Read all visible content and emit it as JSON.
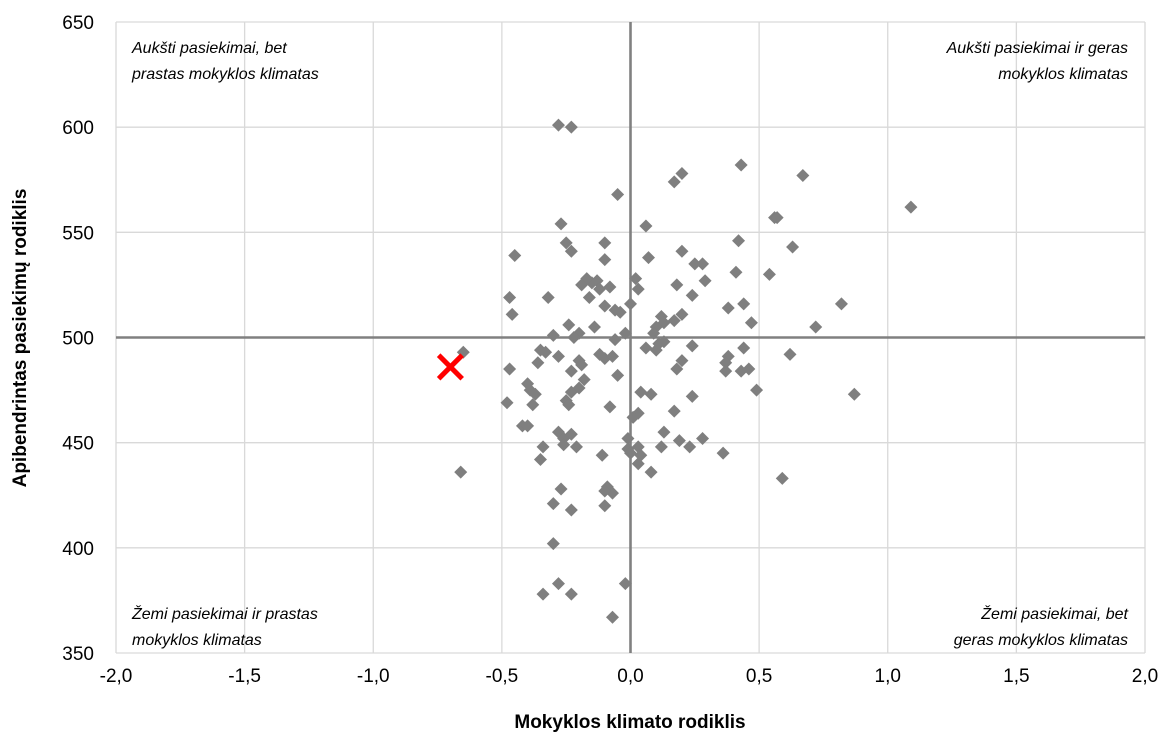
{
  "chart_data": {
    "type": "scatter",
    "title": "",
    "xlabel": "Mokyklos klimato rodiklis",
    "ylabel": "Apibendrintas pasiekimų rodiklis",
    "xlim": [
      -2.0,
      2.0
    ],
    "ylim": [
      350,
      650
    ],
    "x_ticks": [
      -2.0,
      -1.5,
      -1.0,
      -0.5,
      0.0,
      0.5,
      1.0,
      1.5,
      2.0
    ],
    "x_tick_labels": [
      "-2,0",
      "-1,5",
      "-1,0",
      "-0,5",
      "0,0",
      "0,5",
      "1,0",
      "1,5",
      "2,0"
    ],
    "y_ticks": [
      350,
      400,
      450,
      500,
      550,
      600,
      650
    ],
    "y_tick_labels": [
      "350",
      "400",
      "450",
      "500",
      "550",
      "600",
      "650"
    ],
    "grid": true,
    "reference_lines": {
      "x": 0.0,
      "y": 500
    },
    "quadrant_labels": {
      "top_left": [
        "Aukšti pasiekimai, bet",
        "prastas mokyklos klimatas"
      ],
      "top_right": [
        "Aukšti pasiekimai ir geras",
        "mokyklos klimatas"
      ],
      "bottom_left": [
        "Žemi pasiekimai ir prastas",
        "mokyklos klimatas"
      ],
      "bottom_right": [
        "Žemi pasiekimai, bet",
        "geras mokyklos klimatas"
      ]
    },
    "colors": {
      "points": "#7f7f7f",
      "highlight": "#ff0000",
      "grid": "#d9d9d9",
      "reference": "#808080"
    },
    "highlight": {
      "marker": "x",
      "x": -0.7,
      "y": 486
    },
    "series": [
      {
        "marker": "diamond",
        "points": [
          [
            -0.28,
            601
          ],
          [
            -0.23,
            600
          ],
          [
            0.43,
            582
          ],
          [
            0.2,
            578
          ],
          [
            0.17,
            574
          ],
          [
            0.67,
            577
          ],
          [
            1.09,
            562
          ],
          [
            0.56,
            557
          ],
          [
            0.57,
            557
          ],
          [
            -0.05,
            568
          ],
          [
            -0.27,
            554
          ],
          [
            0.06,
            553
          ],
          [
            0.42,
            546
          ],
          [
            0.63,
            543
          ],
          [
            -0.25,
            545
          ],
          [
            -0.1,
            545
          ],
          [
            -0.23,
            541
          ],
          [
            0.2,
            541
          ],
          [
            -0.45,
            539
          ],
          [
            0.07,
            538
          ],
          [
            -0.1,
            537
          ],
          [
            0.25,
            535
          ],
          [
            0.28,
            535
          ],
          [
            0.41,
            531
          ],
          [
            0.54,
            530
          ],
          [
            0.02,
            528
          ],
          [
            0.29,
            527
          ],
          [
            -0.13,
            527
          ],
          [
            -0.15,
            526
          ],
          [
            -0.17,
            528
          ],
          [
            -0.12,
            523
          ],
          [
            -0.08,
            524
          ],
          [
            -0.19,
            525
          ],
          [
            0.18,
            525
          ],
          [
            0.03,
            523
          ],
          [
            0.24,
            520
          ],
          [
            -0.47,
            519
          ],
          [
            -0.32,
            519
          ],
          [
            -0.16,
            519
          ],
          [
            0.0,
            516
          ],
          [
            0.44,
            516
          ],
          [
            0.82,
            516
          ],
          [
            -0.1,
            515
          ],
          [
            -0.06,
            513
          ],
          [
            0.38,
            514
          ],
          [
            -0.04,
            512
          ],
          [
            0.12,
            510
          ],
          [
            -0.46,
            511
          ],
          [
            0.2,
            511
          ],
          [
            0.17,
            508
          ],
          [
            0.13,
            507
          ],
          [
            0.47,
            507
          ],
          [
            0.72,
            505
          ],
          [
            -0.24,
            506
          ],
          [
            -0.14,
            505
          ],
          [
            0.1,
            505
          ],
          [
            0.09,
            502
          ],
          [
            -0.02,
            502
          ],
          [
            -0.06,
            499
          ],
          [
            -0.3,
            501
          ],
          [
            -0.2,
            502
          ],
          [
            -0.22,
            500
          ],
          [
            -0.35,
            494
          ],
          [
            -0.33,
            493
          ],
          [
            -0.36,
            488
          ],
          [
            -0.28,
            491
          ],
          [
            0.13,
            498
          ],
          [
            0.06,
            495
          ],
          [
            0.11,
            497
          ],
          [
            0.1,
            494
          ],
          [
            0.24,
            496
          ],
          [
            0.44,
            495
          ],
          [
            -0.65,
            493
          ],
          [
            -0.1,
            490
          ],
          [
            -0.07,
            491
          ],
          [
            0.62,
            492
          ],
          [
            0.38,
            491
          ],
          [
            -0.12,
            492
          ],
          [
            -0.2,
            489
          ],
          [
            -0.05,
            482
          ],
          [
            0.2,
            489
          ],
          [
            0.37,
            488
          ],
          [
            0.37,
            484
          ],
          [
            0.43,
            484
          ],
          [
            0.46,
            485
          ],
          [
            0.18,
            485
          ],
          [
            -0.47,
            485
          ],
          [
            -0.23,
            484
          ],
          [
            -0.19,
            487
          ],
          [
            -0.18,
            480
          ],
          [
            -0.4,
            478
          ],
          [
            -0.39,
            475
          ],
          [
            -0.37,
            473
          ],
          [
            -0.23,
            474
          ],
          [
            -0.25,
            470
          ],
          [
            -0.2,
            476
          ],
          [
            0.04,
            474
          ],
          [
            0.08,
            473
          ],
          [
            0.49,
            475
          ],
          [
            0.87,
            473
          ],
          [
            0.24,
            472
          ],
          [
            -0.48,
            469
          ],
          [
            -0.38,
            468
          ],
          [
            -0.24,
            468
          ],
          [
            -0.08,
            467
          ],
          [
            0.03,
            464
          ],
          [
            0.01,
            462
          ],
          [
            0.17,
            465
          ],
          [
            -0.42,
            458
          ],
          [
            -0.4,
            458
          ],
          [
            -0.28,
            455
          ],
          [
            -0.26,
            452
          ],
          [
            -0.23,
            454
          ],
          [
            -0.21,
            448
          ],
          [
            -0.26,
            449
          ],
          [
            0.13,
            455
          ],
          [
            -0.01,
            452
          ],
          [
            0.03,
            448
          ],
          [
            0.12,
            448
          ],
          [
            0.23,
            448
          ],
          [
            0.28,
            452
          ],
          [
            0.19,
            451
          ],
          [
            0.36,
            445
          ],
          [
            -0.01,
            447
          ],
          [
            -0.11,
            444
          ],
          [
            0.0,
            445
          ],
          [
            0.04,
            444
          ],
          [
            0.03,
            440
          ],
          [
            0.08,
            436
          ],
          [
            -0.34,
            448
          ],
          [
            -0.35,
            442
          ],
          [
            -0.66,
            436
          ],
          [
            0.59,
            433
          ],
          [
            -0.09,
            429
          ],
          [
            -0.07,
            426
          ],
          [
            -0.1,
            427
          ],
          [
            -0.27,
            428
          ],
          [
            -0.3,
            421
          ],
          [
            -0.23,
            418
          ],
          [
            -0.1,
            420
          ],
          [
            -0.3,
            402
          ],
          [
            -0.28,
            383
          ],
          [
            -0.02,
            383
          ],
          [
            -0.34,
            378
          ],
          [
            -0.23,
            378
          ],
          [
            -0.07,
            367
          ]
        ]
      }
    ]
  }
}
